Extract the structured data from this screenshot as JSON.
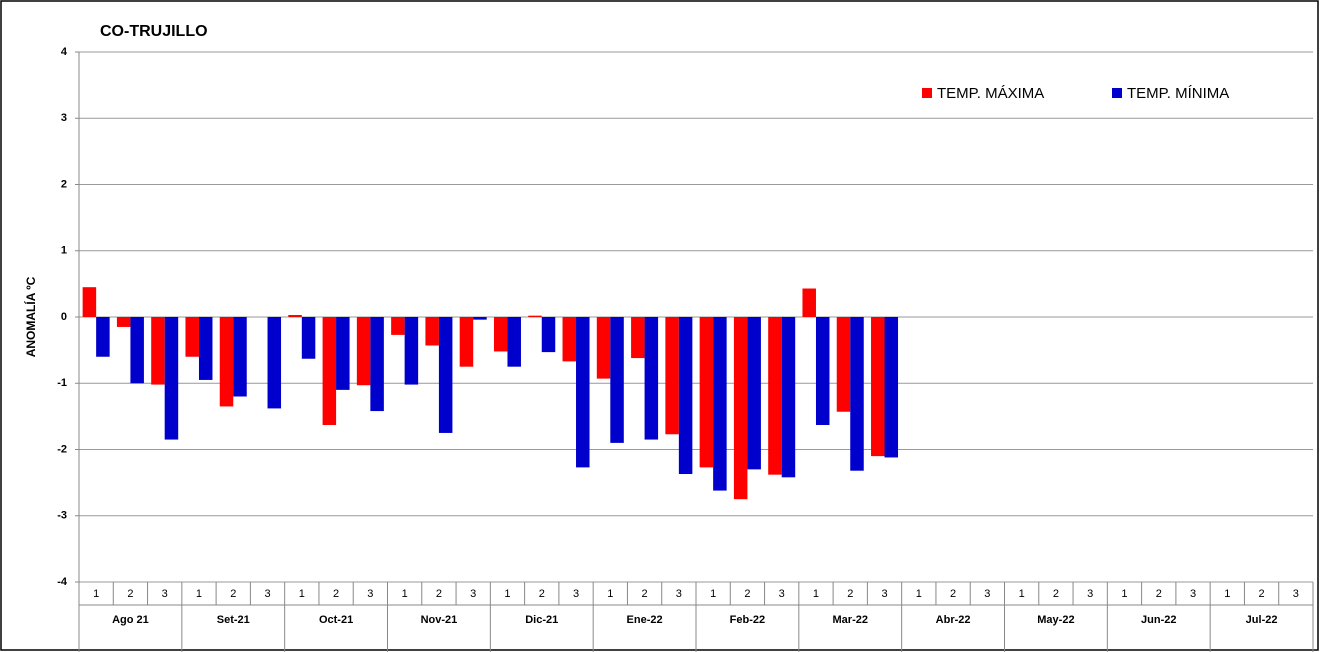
{
  "chart_data": {
    "type": "bar",
    "title": "CO-TRUJILLO",
    "y_label": "ANOMALÍA ºC",
    "categories": [
      "1",
      "2",
      "3",
      "1",
      "2",
      "3",
      "1",
      "2",
      "3",
      "1",
      "2",
      "3",
      "1",
      "2",
      "3",
      "1",
      "2",
      "3",
      "1",
      "2",
      "3",
      "1",
      "2",
      "3",
      "1",
      "2",
      "3",
      "1",
      "2",
      "3",
      "1",
      "2",
      "3",
      "1",
      "2",
      "3"
    ],
    "groups": [
      "Ago 21",
      "Set-21",
      "Oct-21",
      "Nov-21",
      "Dic-21",
      "Ene-22",
      "Feb-22",
      "Mar-22",
      "Abr-22",
      "May-22",
      "Jun-22",
      "Jul-22"
    ],
    "series": [
      {
        "name": "TEMP. MÁXIMA",
        "color": "#ff0000",
        "values": [
          0.45,
          -0.15,
          -1.02,
          -0.6,
          -1.35,
          null,
          0.03,
          -1.63,
          -1.03,
          -0.27,
          -0.43,
          -0.75,
          -0.52,
          0.02,
          -0.67,
          -0.93,
          -0.62,
          -1.77,
          -2.27,
          -2.75,
          -2.38,
          0.43,
          -1.43,
          -2.1,
          null,
          null,
          null,
          null,
          null,
          null,
          null,
          null,
          null,
          null,
          null,
          null
        ]
      },
      {
        "name": "TEMP. MÍNIMA",
        "color": "#0000cc",
        "values": [
          -0.6,
          -1.0,
          -1.85,
          -0.95,
          -1.2,
          -1.38,
          -0.63,
          -1.1,
          -1.42,
          -1.02,
          -1.75,
          -0.04,
          -0.75,
          -0.53,
          -2.27,
          -1.9,
          -1.85,
          -2.37,
          -2.62,
          -2.3,
          -2.42,
          -1.63,
          -2.32,
          -2.12,
          null,
          null,
          null,
          null,
          null,
          null,
          null,
          null,
          null,
          null,
          null,
          null
        ]
      }
    ],
    "ylim": [
      -4,
      4
    ],
    "yticks": [
      -4,
      -3,
      -2,
      -1,
      0,
      1,
      2,
      3,
      4
    ],
    "grid": true,
    "legend": "top-right"
  }
}
